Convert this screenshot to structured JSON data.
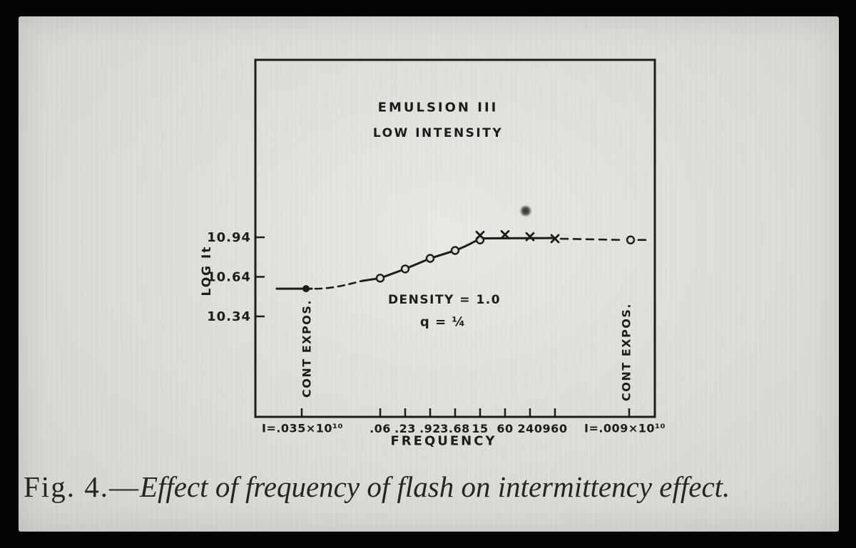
{
  "figure": {
    "caption_prefix": "Fig. 4.—",
    "caption_text": "Effect of frequency of flash on intermittency effect."
  },
  "chart_data": {
    "type": "line",
    "title": "EMULSION III",
    "subtitle": "LOW INTENSITY",
    "ylabel": "LOG It",
    "xlabel": "FREQUENCY",
    "density_label": "DENSITY = 1.0",
    "q_label": "q = ¼",
    "cont_expos_label": "CONT EXPOS.",
    "x_left_end_label": "I=.035×10¹⁰",
    "x_right_end_label": "I=.009×10¹⁰",
    "x_axis_scale": "logarithmic flash frequency between continuous-exposure end points",
    "ylim": [
      10.19,
      11.16
    ],
    "grid": false,
    "legend": "none",
    "y_ticks": [
      {
        "label": "10.94",
        "value": 10.94
      },
      {
        "label": "10.64",
        "value": 10.64
      },
      {
        "label": "10.34",
        "value": 10.34
      }
    ],
    "x_tick_labels": [
      ".06",
      ".23",
      ".92",
      "3.68",
      "15",
      "60",
      "240",
      "960"
    ],
    "series": [
      {
        "name": "continuous-exposure-left",
        "marker": "filled-dot",
        "line": "solid-then-dashed",
        "points": [
          {
            "x": "cont_left",
            "y": 10.55
          }
        ]
      },
      {
        "name": "flash-frequency-circles",
        "marker": "open-circle",
        "line": "solid",
        "points": [
          {
            "x": ".06",
            "y": 10.63
          },
          {
            "x": ".23",
            "y": 10.7
          },
          {
            "x": ".92",
            "y": 10.78
          },
          {
            "x": "3.68",
            "y": 10.84
          },
          {
            "x": "15",
            "y": 10.92
          }
        ]
      },
      {
        "name": "flash-frequency-crosses",
        "marker": "x",
        "line": "solid",
        "points": [
          {
            "x": "15",
            "y": 10.955
          },
          {
            "x": "60",
            "y": 10.96
          },
          {
            "x": "240",
            "y": 10.945
          },
          {
            "x": "960",
            "y": 10.93
          }
        ]
      },
      {
        "name": "continuous-exposure-right",
        "marker": "open-circle",
        "line": "dashed",
        "points": [
          {
            "x": "cont_right",
            "y": 10.92
          }
        ]
      }
    ]
  }
}
